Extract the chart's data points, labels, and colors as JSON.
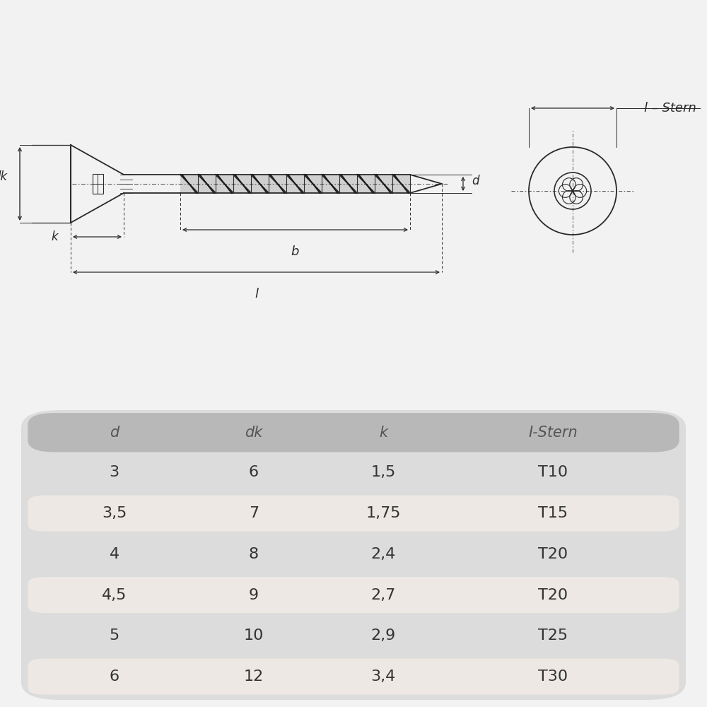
{
  "bg_color": "#f2f2f2",
  "drawing_bg": "#ffffff",
  "table_bg": "#dcdcdc",
  "row_highlight_bg": "#ede8e3",
  "header_bg": "#b8b8b8",
  "header_text_color": "#555555",
  "text_color": "#333333",
  "line_color": "#2a2a2a",
  "headers": [
    "d",
    "dk",
    "k",
    "I-Stern"
  ],
  "rows": [
    [
      "3",
      "6",
      "1,5",
      "T10"
    ],
    [
      "3,5",
      "7",
      "1,75",
      "T15"
    ],
    [
      "4",
      "8",
      "2,4",
      "T20"
    ],
    [
      "4,5",
      "9",
      "2,7",
      "T20"
    ],
    [
      "5",
      "10",
      "2,9",
      "T25"
    ],
    [
      "6",
      "12",
      "3,4",
      "T30"
    ]
  ],
  "highlight_rows": [
    1,
    3,
    5
  ],
  "label_dk": "dk",
  "label_k": "k",
  "label_b": "b",
  "label_l": "l",
  "label_d": "d",
  "label_istern": "l – Stern"
}
